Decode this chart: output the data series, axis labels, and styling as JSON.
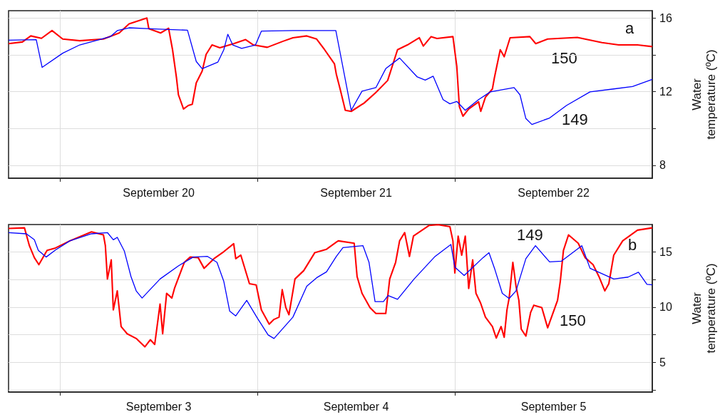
{
  "chart_data": [
    {
      "type": "line",
      "ylabel": "Water temperature (ºC)",
      "xlim": [
        "--09-19T17:45",
        "--09-23T00:00"
      ],
      "xticks": [
        {
          "value": "--09-20T00:00",
          "label": null
        },
        {
          "value": "--09-20T12:00",
          "label": "September 20"
        },
        {
          "value": "--09-21T00:00",
          "label": null
        },
        {
          "value": "--09-21T12:00",
          "label": "September 21"
        },
        {
          "value": "--09-22T00:00",
          "label": null
        },
        {
          "value": "--09-22T12:00",
          "label": "September 22"
        }
      ],
      "ylim": [
        7.3,
        16.4
      ],
      "yticks": [
        8,
        {
          "value": 10,
          "label": null
        },
        12,
        {
          "value": 14,
          "label": null
        },
        16
      ],
      "grid": true,
      "annotations": [
        "a",
        "150",
        "149"
      ],
      "series": [
        {
          "color": "#ff0000",
          "x": [
            "--09-19T17:45",
            "--09-19T19:26",
            "--09-19T20:27",
            "--09-19T21:45",
            "--09-19T23:02",
            "--09-20T00:20",
            "--09-20T02:24",
            "--09-20T05:17",
            "--09-20T07:12",
            "--09-20T08:24",
            "--09-20T10:34",
            "--09-20T10:48",
            "--09-20T12:14",
            "--09-20T13:12",
            "--09-20T13:41",
            "--09-20T14:10",
            "--09-20T14:24",
            "--09-20T15:01",
            "--09-20T15:36",
            "--09-20T16:05",
            "--09-20T16:34",
            "--09-20T17:17",
            "--09-20T17:46",
            "--09-20T18:29",
            "--09-20T19:26",
            "--09-20T21:07",
            "--09-20T22:34",
            "--09-20T23:31",
            "--09-21T01:12",
            "--09-21T03:07",
            "--09-21T04:19",
            "--09-21T06:00",
            "--09-21T07:12",
            "--09-21T08:10",
            "--09-21T09:22",
            "--09-21T09:36",
            "--09-21T10:05",
            "--09-21T10:41",
            "--09-21T11:24",
            "--09-21T12:58",
            "--09-21T14:24",
            "--09-21T15:50",
            "--09-21T17:02",
            "--09-21T18:14",
            "--09-21T19:41",
            "--09-21T20:10",
            "--09-21T21:07",
            "--09-21T21:50",
            "--09-21T23:46",
            "--09-22T00:14",
            "--09-22T00:33",
            "--09-22T00:59",
            "--09-22T01:41",
            "--09-22T02:53",
            "--09-22T03:09",
            "--09-22T03:43",
            "--09-22T04:34",
            "--09-22T04:48",
            "--09-22T05:31",
            "--09-22T06:00",
            "--09-22T06:43",
            "--09-22T09:07",
            "--09-22T09:50",
            "--09-22T11:17",
            "--09-22T14:53",
            "--09-22T17:53",
            "--09-22T19:55",
            "--09-22T22:12",
            "--09-23T00:00"
          ],
          "values": [
            14.61,
            14.7,
            15.03,
            14.9,
            15.32,
            14.86,
            14.77,
            14.86,
            15.19,
            15.68,
            16.0,
            15.42,
            15.19,
            15.45,
            14.28,
            12.74,
            11.83,
            11.06,
            11.25,
            11.32,
            12.48,
            13.12,
            14.03,
            14.54,
            14.39,
            14.61,
            14.83,
            14.54,
            14.41,
            14.74,
            14.93,
            15.03,
            14.86,
            14.28,
            13.51,
            12.93,
            12.09,
            10.99,
            10.93,
            11.38,
            11.96,
            12.61,
            14.28,
            14.54,
            14.93,
            14.48,
            14.99,
            14.89,
            14.99,
            13.38,
            11.19,
            10.67,
            11.06,
            11.45,
            10.93,
            11.7,
            12.15,
            12.74,
            14.28,
            13.9,
            14.93,
            14.99,
            14.61,
            14.86,
            14.95,
            14.67,
            14.54,
            14.54,
            14.45
          ]
        },
        {
          "color": "#0000ff",
          "x": [
            "--09-19T17:45",
            "--09-19T21:07",
            "--09-19T21:50",
            "--09-20T00:20",
            "--09-20T02:24",
            "--09-20T06:07",
            "--09-20T06:58",
            "--09-20T08:24",
            "--09-20T11:02",
            "--09-20T15:30",
            "--09-20T16:34",
            "--09-20T17:17",
            "--09-20T19:12",
            "--09-20T19:55",
            "--09-20T20:24",
            "--09-20T21:00",
            "--09-20T22:05",
            "--09-20T23:46",
            "--09-21T00:29",
            "--09-21T04:19",
            "--09-21T09:32",
            "--09-21T10:19",
            "--09-21T11:24",
            "--09-21T12:43",
            "--09-21T14:24",
            "--09-21T15:36",
            "--09-21T17:17",
            "--09-21T19:26",
            "--09-21T20:24",
            "--09-21T21:22",
            "--09-21T22:34",
            "--09-21T23:24",
            "--09-22T00:14",
            "--09-22T01:16",
            "--09-22T02:53",
            "--09-22T04:19",
            "--09-22T07:12",
            "--09-22T07:55",
            "--09-22T08:38",
            "--09-22T09:22",
            "--09-22T11:31",
            "--09-22T13:34",
            "--09-22T16:26",
            "--09-22T19:19",
            "--09-22T21:36",
            "--09-23T00:00"
          ],
          "values": [
            14.8,
            14.83,
            13.32,
            14.09,
            14.54,
            14.99,
            15.32,
            15.47,
            15.42,
            15.34,
            13.64,
            13.25,
            13.61,
            14.28,
            15.12,
            14.54,
            14.35,
            14.54,
            15.29,
            15.32,
            15.32,
            13.51,
            10.99,
            12.03,
            12.22,
            13.25,
            13.83,
            12.8,
            12.63,
            12.84,
            11.57,
            11.34,
            11.47,
            10.99,
            11.57,
            11.99,
            12.22,
            11.83,
            10.54,
            10.22,
            10.57,
            11.25,
            11.99,
            12.15,
            12.28,
            12.67
          ]
        }
      ]
    },
    {
      "type": "line",
      "ylabel": "Water temperature (ºC)",
      "xlim": [
        "--09-02T17:45",
        "--09-06T00:00"
      ],
      "xticks": [
        {
          "value": "--09-03T00:00",
          "label": null
        },
        {
          "value": "--09-03T12:00",
          "label": "September 3"
        },
        {
          "value": "--09-04T00:00",
          "label": null
        },
        {
          "value": "--09-04T12:00",
          "label": "September 4"
        },
        {
          "value": "--09-05T00:00",
          "label": null
        },
        {
          "value": "--09-05T12:00",
          "label": "September 5"
        }
      ],
      "ylim": [
        2.3,
        17.5
      ],
      "yticks": [
        {
          "value": 2.5,
          "label": null
        },
        5,
        {
          "value": 7.5,
          "label": null
        },
        10,
        {
          "value": 12.5,
          "label": null
        },
        15
      ],
      "grid": true,
      "annotations": [
        "b",
        "149",
        "150"
      ],
      "series": [
        {
          "color": "#ff0000",
          "x": [
            "--09-02T17:45",
            "--09-02T19:41",
            "--09-02T20:17",
            "--09-02T20:53",
            "--09-02T21:26",
            "--09-02T22:26",
            "--09-02T23:27",
            "--09-03T01:12",
            "--09-03T03:50",
            "--09-03T05:17",
            "--09-03T05:31",
            "--09-03T05:46",
            "--09-03T06:14",
            "--09-03T06:29",
            "--09-03T06:58",
            "--09-03T07:26",
            "--09-03T08:10",
            "--09-03T09:16",
            "--09-03T10:19",
            "--09-03T10:59",
            "--09-03T11:31",
            "--09-03T12:10",
            "--09-03T12:29",
            "--09-03T12:58",
            "--09-03T13:36",
            "--09-03T13:55",
            "--09-03T15:07",
            "--09-03T15:50",
            "--09-03T16:48",
            "--09-03T17:31",
            "--09-03T18:43",
            "--09-03T19:55",
            "--09-03T21:07",
            "--09-03T21:22",
            "--09-03T21:59",
            "--09-03T23:02",
            "--09-03T23:51",
            "--09-04T00:29",
            "--09-04T01:26",
            "--09-04T02:01",
            "--09-04T02:38",
            "--09-04T03:01",
            "--09-04T03:27",
            "--09-04T03:50",
            "--09-04T04:34",
            "--09-04T05:38",
            "--09-04T06:58",
            "--09-04T08:24",
            "--09-04T09:36",
            "--09-04T09:50",
            "--09-04T11:46",
            "--09-04T12:07",
            "--09-04T12:43",
            "--09-04T13:41",
            "--09-04T14:24",
            "--09-04T15:36",
            "--09-04T16:05",
            "--09-04T16:48",
            "--09-04T17:17",
            "--09-04T17:54",
            "--09-04T18:29",
            "--09-04T18:58",
            "--09-04T20:53",
            "--09-04T21:58",
            "--09-04T23:24",
            "--09-04T23:46",
            "--09-05T00:00",
            "--09-05T00:24",
            "--09-05T00:50",
            "--09-05T01:16",
            "--09-05T01:41",
            "--09-05T02:10",
            "--09-05T02:34",
            "--09-05T03:07",
            "--09-05T03:43",
            "--09-05T04:34",
            "--09-05T05:02",
            "--09-05T05:37",
            "--09-05T06:00",
            "--09-05T06:20",
            "--09-05T06:36",
            "--09-05T07:03",
            "--09-05T07:26",
            "--09-05T07:47",
            "--09-05T08:04",
            "--09-05T08:38",
            "--09-05T09:13",
            "--09-05T09:36",
            "--09-05T10:34",
            "--09-05T11:17",
            "--09-05T12:29",
            "--09-05T12:49",
            "--09-05T13:12",
            "--09-05T13:49",
            "--09-05T15:00",
            "--09-05T15:50",
            "--09-05T16:48",
            "--09-05T17:31",
            "--09-05T18:14",
            "--09-05T18:43",
            "--09-05T19:19",
            "--09-05T20:24",
            "--09-05T22:12",
            "--09-06T00:00"
          ],
          "values": [
            17.14,
            17.2,
            15.58,
            14.5,
            13.86,
            15.15,
            15.37,
            16.02,
            16.84,
            16.56,
            15.58,
            12.56,
            14.29,
            9.75,
            11.48,
            8.24,
            7.59,
            7.16,
            6.4,
            7.05,
            6.62,
            10.29,
            7.59,
            11.26,
            10.83,
            11.7,
            14.07,
            14.55,
            14.5,
            13.53,
            14.4,
            15.04,
            15.76,
            14.4,
            14.72,
            12.13,
            12.02,
            9.75,
            8.46,
            8.89,
            9.1,
            11.59,
            9.97,
            9.32,
            12.56,
            13.32,
            14.94,
            15.26,
            15.91,
            16.02,
            15.8,
            12.78,
            11.26,
            9.97,
            9.43,
            9.43,
            12.56,
            14.07,
            16.02,
            16.77,
            14.61,
            16.45,
            17.42,
            17.48,
            17.31,
            16.02,
            13.1,
            16.45,
            14.72,
            16.45,
            11.7,
            14.29,
            11.26,
            10.4,
            9.1,
            8.24,
            7.2,
            8.24,
            7.27,
            9.75,
            10.83,
            14.07,
            11.91,
            10.62,
            8.02,
            7.38,
            9.54,
            10.18,
            9.97,
            8.13,
            10.62,
            12.34,
            15.15,
            16.56,
            15.8,
            14.5,
            13.86,
            12.78,
            11.48,
            12.13,
            14.72,
            16.02,
            16.99,
            17.2
          ]
        },
        {
          "color": "#0000ff",
          "x": [
            "--09-02T17:45",
            "--09-02T19:55",
            "--09-02T20:53",
            "--09-02T21:22",
            "--09-02T22:19",
            "--09-02T23:27",
            "--09-03T01:12",
            "--09-03T03:50",
            "--09-03T05:46",
            "--09-03T06:29",
            "--09-03T06:58",
            "--09-03T07:49",
            "--09-03T08:38",
            "--09-03T09:16",
            "--09-03T09:59",
            "--09-03T12:10",
            "--09-03T14:24",
            "--09-03T16:12",
            "--09-03T17:56",
            "--09-03T19:05",
            "--09-03T19:55",
            "--09-03T20:38",
            "--09-03T21:22",
            "--09-03T22:42",
            "--09-04T00:00",
            "--09-04T01:18",
            "--09-04T02:01",
            "--09-04T04:19",
            "--09-04T06:00",
            "--09-04T07:12",
            "--09-04T08:24",
            "--09-04T09:36",
            "--09-04T10:24",
            "--09-04T12:50",
            "--09-04T13:34",
            "--09-04T14:18",
            "--09-04T15:19",
            "--09-04T15:53",
            "--09-04T17:02",
            "--09-04T19:03",
            "--09-04T21:36",
            "--09-04T23:31",
            "--09-05T00:00",
            "--09-05T01:08",
            "--09-05T03:26",
            "--09-05T04:09",
            "--09-05T04:52",
            "--09-05T05:46",
            "--09-05T06:36",
            "--09-05T07:26",
            "--09-05T08:38",
            "--09-05T09:48",
            "--09-05T11:31",
            "--09-05T12:58",
            "--09-05T15:26",
            "--09-05T16:26",
            "--09-05T19:19",
            "--09-05T21:03",
            "--09-05T22:19",
            "--09-05T23:21",
            "--09-06T00:00"
          ],
          "values": [
            16.77,
            16.66,
            16.12,
            15.15,
            14.55,
            15.19,
            16.02,
            16.66,
            16.77,
            16.12,
            16.34,
            15.11,
            12.78,
            11.48,
            10.83,
            12.56,
            13.75,
            14.55,
            14.61,
            14.07,
            12.34,
            9.64,
            9.21,
            10.62,
            9.0,
            7.48,
            7.16,
            9.1,
            11.91,
            12.67,
            13.21,
            14.61,
            15.41,
            15.58,
            14.07,
            10.51,
            10.51,
            11.05,
            10.72,
            12.56,
            14.61,
            15.69,
            13.64,
            12.88,
            14.5,
            14.94,
            13.42,
            11.26,
            10.79,
            11.48,
            14.4,
            15.58,
            14.11,
            14.18,
            15.58,
            13.53,
            12.56,
            12.73,
            13.17,
            12.08,
            12.02
          ]
        }
      ]
    }
  ]
}
